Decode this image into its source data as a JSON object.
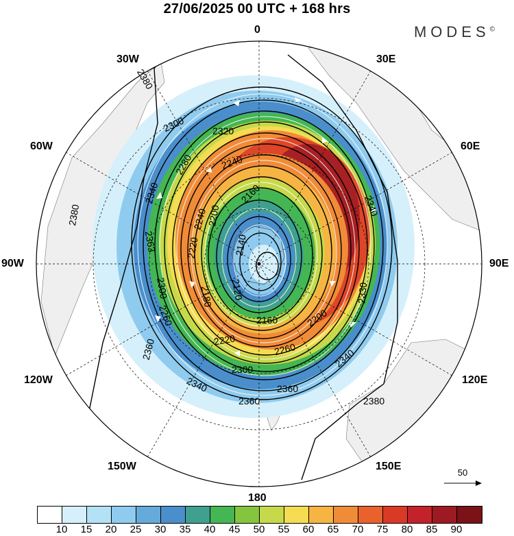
{
  "title": "27/06/2025  00 UTC  + 168 hrs",
  "brand": "MODES",
  "brand_mark": "©",
  "longitude_labels": {
    "n": "0",
    "ne": "30E",
    "e1": "60E",
    "e": "90E",
    "se1": "120E",
    "se": "150E",
    "s": "180",
    "sw": "150W",
    "sw1": "120W",
    "w": "90W",
    "nw1": "60W",
    "nw": "30W"
  },
  "reference_vector": "50",
  "colorbar": {
    "labels": [
      "10",
      "15",
      "20",
      "25",
      "30",
      "35",
      "40",
      "45",
      "50",
      "55",
      "60",
      "65",
      "70",
      "75",
      "80",
      "85",
      "90"
    ],
    "colors": [
      "#ffffff",
      "#d6f0fb",
      "#b3e2f6",
      "#8fcbee",
      "#66aadc",
      "#4a8fcc",
      "#3fa090",
      "#44b653",
      "#84c43e",
      "#c6d94a",
      "#f5dc52",
      "#f6b443",
      "#f08c37",
      "#e9622c",
      "#d93a26",
      "#c4222a",
      "#9e1a22",
      "#7a1218"
    ]
  },
  "contour_labels": [
    "2380",
    "2380",
    "2380",
    "2360",
    "2360",
    "2340",
    "2340",
    "2340",
    "2320",
    "2300",
    "2300",
    "2300",
    "2280",
    "2260",
    "2260",
    "2240",
    "2240",
    "2220",
    "2220",
    "2200",
    "2200",
    "2180",
    "2160",
    "2160",
    "2140",
    "2120",
    "2330",
    "2363",
    "2360",
    "2340"
  ]
}
